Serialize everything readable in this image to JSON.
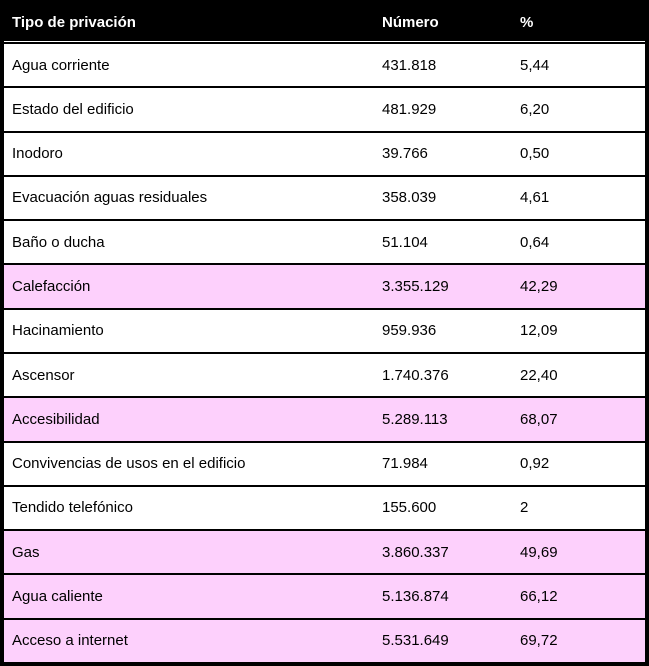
{
  "chart_data": {
    "type": "table",
    "title": "",
    "columns": [
      "Tipo de privación",
      "Número",
      "%"
    ],
    "rows": [
      [
        "Agua corriente",
        "431.818",
        "5,44"
      ],
      [
        "Estado del edificio",
        "481.929",
        "6,20"
      ],
      [
        "Inodoro",
        "39.766",
        "0,50"
      ],
      [
        "Evacuación aguas residuales",
        "358.039",
        "4,61"
      ],
      [
        "Baño o ducha",
        "51.104",
        "0,64"
      ],
      [
        "Calefacción",
        "3.355.129",
        "42,29"
      ],
      [
        "Hacinamiento",
        "959.936",
        "12,09"
      ],
      [
        "Ascensor",
        "1.740.376",
        "22,40"
      ],
      [
        "Accesibilidad",
        "5.289.113",
        "68,07"
      ],
      [
        "Convivencias de usos en el edificio",
        "71.984",
        "0,92"
      ],
      [
        "Tendido telefónico",
        "155.600",
        "2"
      ],
      [
        "Gas",
        "3.860.337",
        "49,69"
      ],
      [
        "Agua caliente",
        "5.136.874",
        "66,12"
      ],
      [
        "Acceso a internet",
        "5.531.649",
        "69,72"
      ]
    ],
    "highlighted_row_indices": [
      5,
      8,
      11,
      12,
      13
    ],
    "colors": {
      "header_background": "#000000",
      "header_text": "#ffffff",
      "row_background": "#ffffff",
      "highlight_background": "#fdd0fc",
      "border": "#000000",
      "body_text": "#000000"
    }
  }
}
